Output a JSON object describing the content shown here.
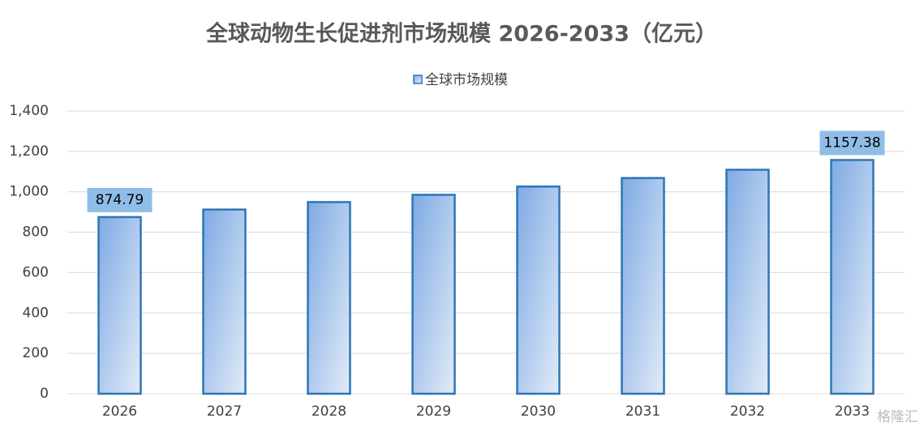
{
  "chart_data": {
    "type": "bar",
    "title": "全球动物生长促进剂市场规模 2026-2033（亿元）",
    "categories": [
      "2026",
      "2027",
      "2028",
      "2029",
      "2030",
      "2031",
      "2032",
      "2033"
    ],
    "series": [
      {
        "name": "全球市场规模",
        "color": "#2e75b6",
        "values": [
          874.79,
          912,
          949,
          985,
          1026,
          1068,
          1109,
          1157.38
        ],
        "value_labels": [
          "874.79",
          null,
          null,
          null,
          null,
          null,
          null,
          "1157.38"
        ]
      }
    ],
    "ylim": [
      0,
      1400
    ],
    "yticks": [
      0,
      200,
      400,
      600,
      800,
      {
        "value": 1000,
        "label": "1,000"
      },
      {
        "value": 1200,
        "label": "1,200"
      },
      {
        "value": 1400,
        "label": "1,400"
      }
    ],
    "grid": true,
    "legend": "top",
    "watermark": "格隆汇"
  }
}
